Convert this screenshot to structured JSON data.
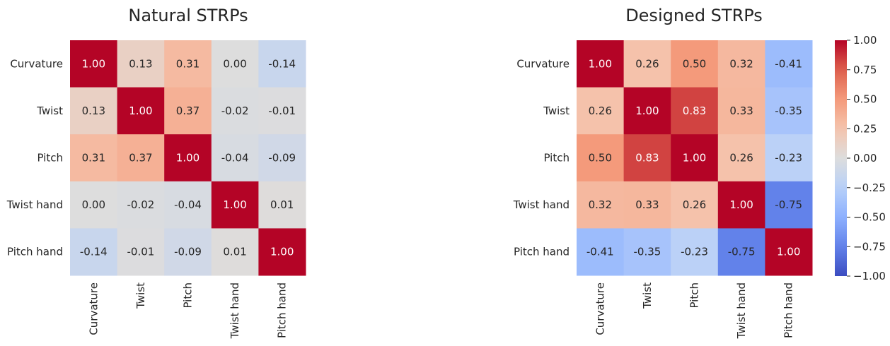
{
  "chart_data": [
    {
      "type": "heatmap",
      "title": "Natural STRPs",
      "categories": [
        "Curvature",
        "Twist",
        "Pitch",
        "Twist hand",
        "Pitch hand"
      ],
      "values": [
        [
          1.0,
          0.13,
          0.31,
          0.0,
          -0.14
        ],
        [
          0.13,
          1.0,
          0.37,
          -0.02,
          -0.01
        ],
        [
          0.31,
          0.37,
          1.0,
          -0.04,
          -0.09
        ],
        [
          0.0,
          -0.02,
          -0.04,
          1.0,
          0.01
        ],
        [
          -0.14,
          -0.01,
          -0.09,
          0.01,
          1.0
        ]
      ],
      "value_labels": [
        [
          "1.00",
          "0.13",
          "0.31",
          "0.00",
          "-0.14"
        ],
        [
          "0.13",
          "1.00",
          "0.37",
          "-0.02",
          "-0.01"
        ],
        [
          "0.31",
          "0.37",
          "1.00",
          "-0.04",
          "-0.09"
        ],
        [
          "0.00",
          "-0.02",
          "-0.04",
          "1.00",
          "0.01"
        ],
        [
          "-0.14",
          "-0.01",
          "-0.09",
          "0.01",
          "1.00"
        ]
      ]
    },
    {
      "type": "heatmap",
      "title": "Designed STRPs",
      "categories": [
        "Curvature",
        "Twist",
        "Pitch",
        "Twist hand",
        "Pitch hand"
      ],
      "values": [
        [
          1.0,
          0.26,
          0.5,
          0.32,
          -0.41
        ],
        [
          0.26,
          1.0,
          0.83,
          0.33,
          -0.35
        ],
        [
          0.5,
          0.83,
          1.0,
          0.26,
          -0.23
        ],
        [
          0.32,
          0.33,
          0.26,
          1.0,
          -0.75
        ],
        [
          -0.41,
          -0.35,
          -0.23,
          -0.75,
          1.0
        ]
      ],
      "value_labels": [
        [
          "1.00",
          "0.26",
          "0.50",
          "0.32",
          "-0.41"
        ],
        [
          "0.26",
          "1.00",
          "0.83",
          "0.33",
          "-0.35"
        ],
        [
          "0.50",
          "0.83",
          "1.00",
          "0.26",
          "-0.23"
        ],
        [
          "0.32",
          "0.33",
          "0.26",
          "1.00",
          "-0.75"
        ],
        [
          "-0.41",
          "-0.35",
          "-0.23",
          "-0.75",
          "1.00"
        ]
      ]
    }
  ],
  "colorbar": {
    "colormap": "coolwarm",
    "vmin": -1.0,
    "vmax": 1.0,
    "ticks": [
      1.0,
      0.75,
      0.5,
      0.25,
      0.0,
      -0.25,
      -0.5,
      -0.75,
      -1.0
    ],
    "tick_labels": [
      "1.00",
      "0.75",
      "0.50",
      "0.25",
      "0.00",
      "−0.25",
      "−0.50",
      "−0.75",
      "−1.00"
    ]
  }
}
